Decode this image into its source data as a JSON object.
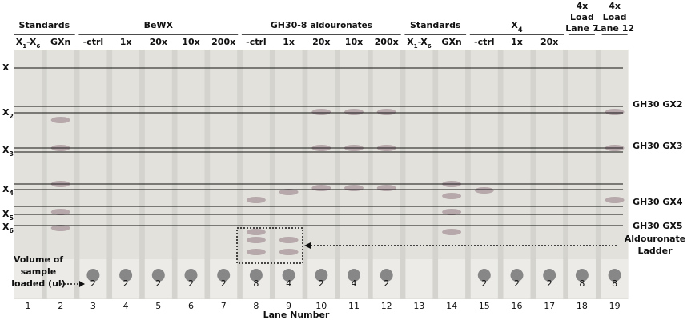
{
  "groups": [
    {
      "text": "Standards"
    },
    {
      "text": "BeWX"
    },
    {
      "text": "GH30-8",
      "small": "aldouronates"
    },
    {
      "text": "Standards"
    },
    {
      "text": "X",
      "sub": "4"
    }
  ],
  "load_labels": [
    {
      "lines": [
        "4x",
        "Load",
        "Lane 7"
      ]
    },
    {
      "lines": [
        "4x",
        "Load",
        "Lane 12"
      ]
    }
  ],
  "lane_labels": [
    {
      "text": "X",
      "sub": "1",
      "text2": "-X",
      "sub2": "6"
    },
    {
      "text": "GXn"
    },
    {
      "text": "-ctrl"
    },
    {
      "text": "1x"
    },
    {
      "text": "20x"
    },
    {
      "text": "10x"
    },
    {
      "text": "200x"
    },
    {
      "text": "-ctrl"
    },
    {
      "text": "1x"
    },
    {
      "text": "20x"
    },
    {
      "text": "10x"
    },
    {
      "text": "200x"
    },
    {
      "text": "X",
      "sub": "1",
      "text2": "-X",
      "sub2": "6"
    },
    {
      "text": "GXn"
    },
    {
      "text": "-ctrl"
    },
    {
      "text": "1x"
    },
    {
      "text": "20x"
    }
  ],
  "left_labels": [
    {
      "text": "X"
    },
    {
      "text": "X",
      "sub": "2"
    },
    {
      "text": "X",
      "sub": "3"
    },
    {
      "text": "X",
      "sub": "4"
    },
    {
      "text": "X",
      "sub": "5"
    },
    {
      "text": "X",
      "sub": "6"
    }
  ],
  "right_labels": [
    "GH30 GX2",
    "GH30 GX3",
    "GH30 GX4",
    "GH30 GX5"
  ],
  "ladder_label": {
    "lines": [
      "Aldouronate",
      "Ladder"
    ]
  },
  "volume_label": {
    "lines": [
      "Volume of",
      "sample",
      "loaded (ul)"
    ]
  },
  "volumes": [
    null,
    null,
    2,
    2,
    2,
    2,
    2,
    8,
    4,
    2,
    4,
    2,
    null,
    null,
    2,
    2,
    2,
    8,
    8
  ],
  "lane_numbers": [
    1,
    2,
    3,
    4,
    5,
    6,
    7,
    8,
    9,
    10,
    11,
    12,
    13,
    14,
    15,
    16,
    17,
    18,
    19
  ],
  "axis_label": "Lane Number"
}
